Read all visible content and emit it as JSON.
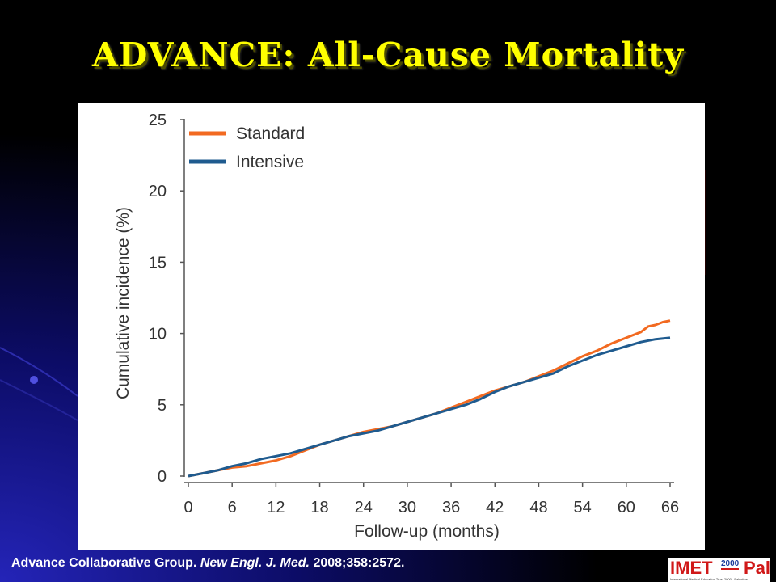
{
  "slide": {
    "title": "ADVANCE: All-Cause Mortality",
    "citation_authors": "Advance Collaborative Group.",
    "citation_journal": "New Engl. J. Med.",
    "citation_ref": "2008;358:2572.",
    "logo": {
      "left": "IMET",
      "year": "2000",
      "right": "Pal",
      "tagline": "International Medical Education Trust 2000 - Palestine"
    }
  },
  "chart_data": {
    "type": "line",
    "title": "",
    "xlabel": "Follow-up (months)",
    "ylabel": "Cumulative incidence (%)",
    "xlim": [
      0,
      66
    ],
    "ylim": [
      0,
      25
    ],
    "x_ticks": [
      0,
      6,
      12,
      18,
      24,
      30,
      36,
      42,
      48,
      54,
      60,
      66
    ],
    "y_ticks": [
      0,
      5,
      10,
      15,
      20,
      25
    ],
    "grid": false,
    "legend_position": "top-left",
    "series": [
      {
        "name": "Standard",
        "color": "#f26a21",
        "x": [
          0,
          2,
          4,
          6,
          8,
          10,
          12,
          14,
          16,
          18,
          20,
          22,
          24,
          26,
          28,
          30,
          32,
          34,
          36,
          38,
          40,
          42,
          44,
          46,
          48,
          50,
          52,
          54,
          56,
          58,
          60,
          62,
          63,
          64,
          65,
          66
        ],
        "y": [
          0,
          0.2,
          0.4,
          0.6,
          0.7,
          0.9,
          1.1,
          1.4,
          1.8,
          2.2,
          2.5,
          2.8,
          3.1,
          3.3,
          3.5,
          3.8,
          4.1,
          4.4,
          4.8,
          5.2,
          5.6,
          6.0,
          6.3,
          6.6,
          7.0,
          7.4,
          7.9,
          8.4,
          8.8,
          9.3,
          9.7,
          10.1,
          10.5,
          10.6,
          10.8,
          10.9
        ]
      },
      {
        "name": "Intensive",
        "color": "#1f5b8f",
        "x": [
          0,
          2,
          4,
          6,
          8,
          10,
          12,
          14,
          16,
          18,
          20,
          22,
          24,
          26,
          28,
          30,
          32,
          34,
          36,
          38,
          40,
          42,
          44,
          46,
          48,
          50,
          52,
          54,
          56,
          58,
          60,
          62,
          64,
          66
        ],
        "y": [
          0,
          0.2,
          0.4,
          0.7,
          0.9,
          1.2,
          1.4,
          1.6,
          1.9,
          2.2,
          2.5,
          2.8,
          3.0,
          3.2,
          3.5,
          3.8,
          4.1,
          4.4,
          4.7,
          5.0,
          5.4,
          5.9,
          6.3,
          6.6,
          6.9,
          7.2,
          7.7,
          8.1,
          8.5,
          8.8,
          9.1,
          9.4,
          9.6,
          9.7
        ]
      }
    ]
  }
}
